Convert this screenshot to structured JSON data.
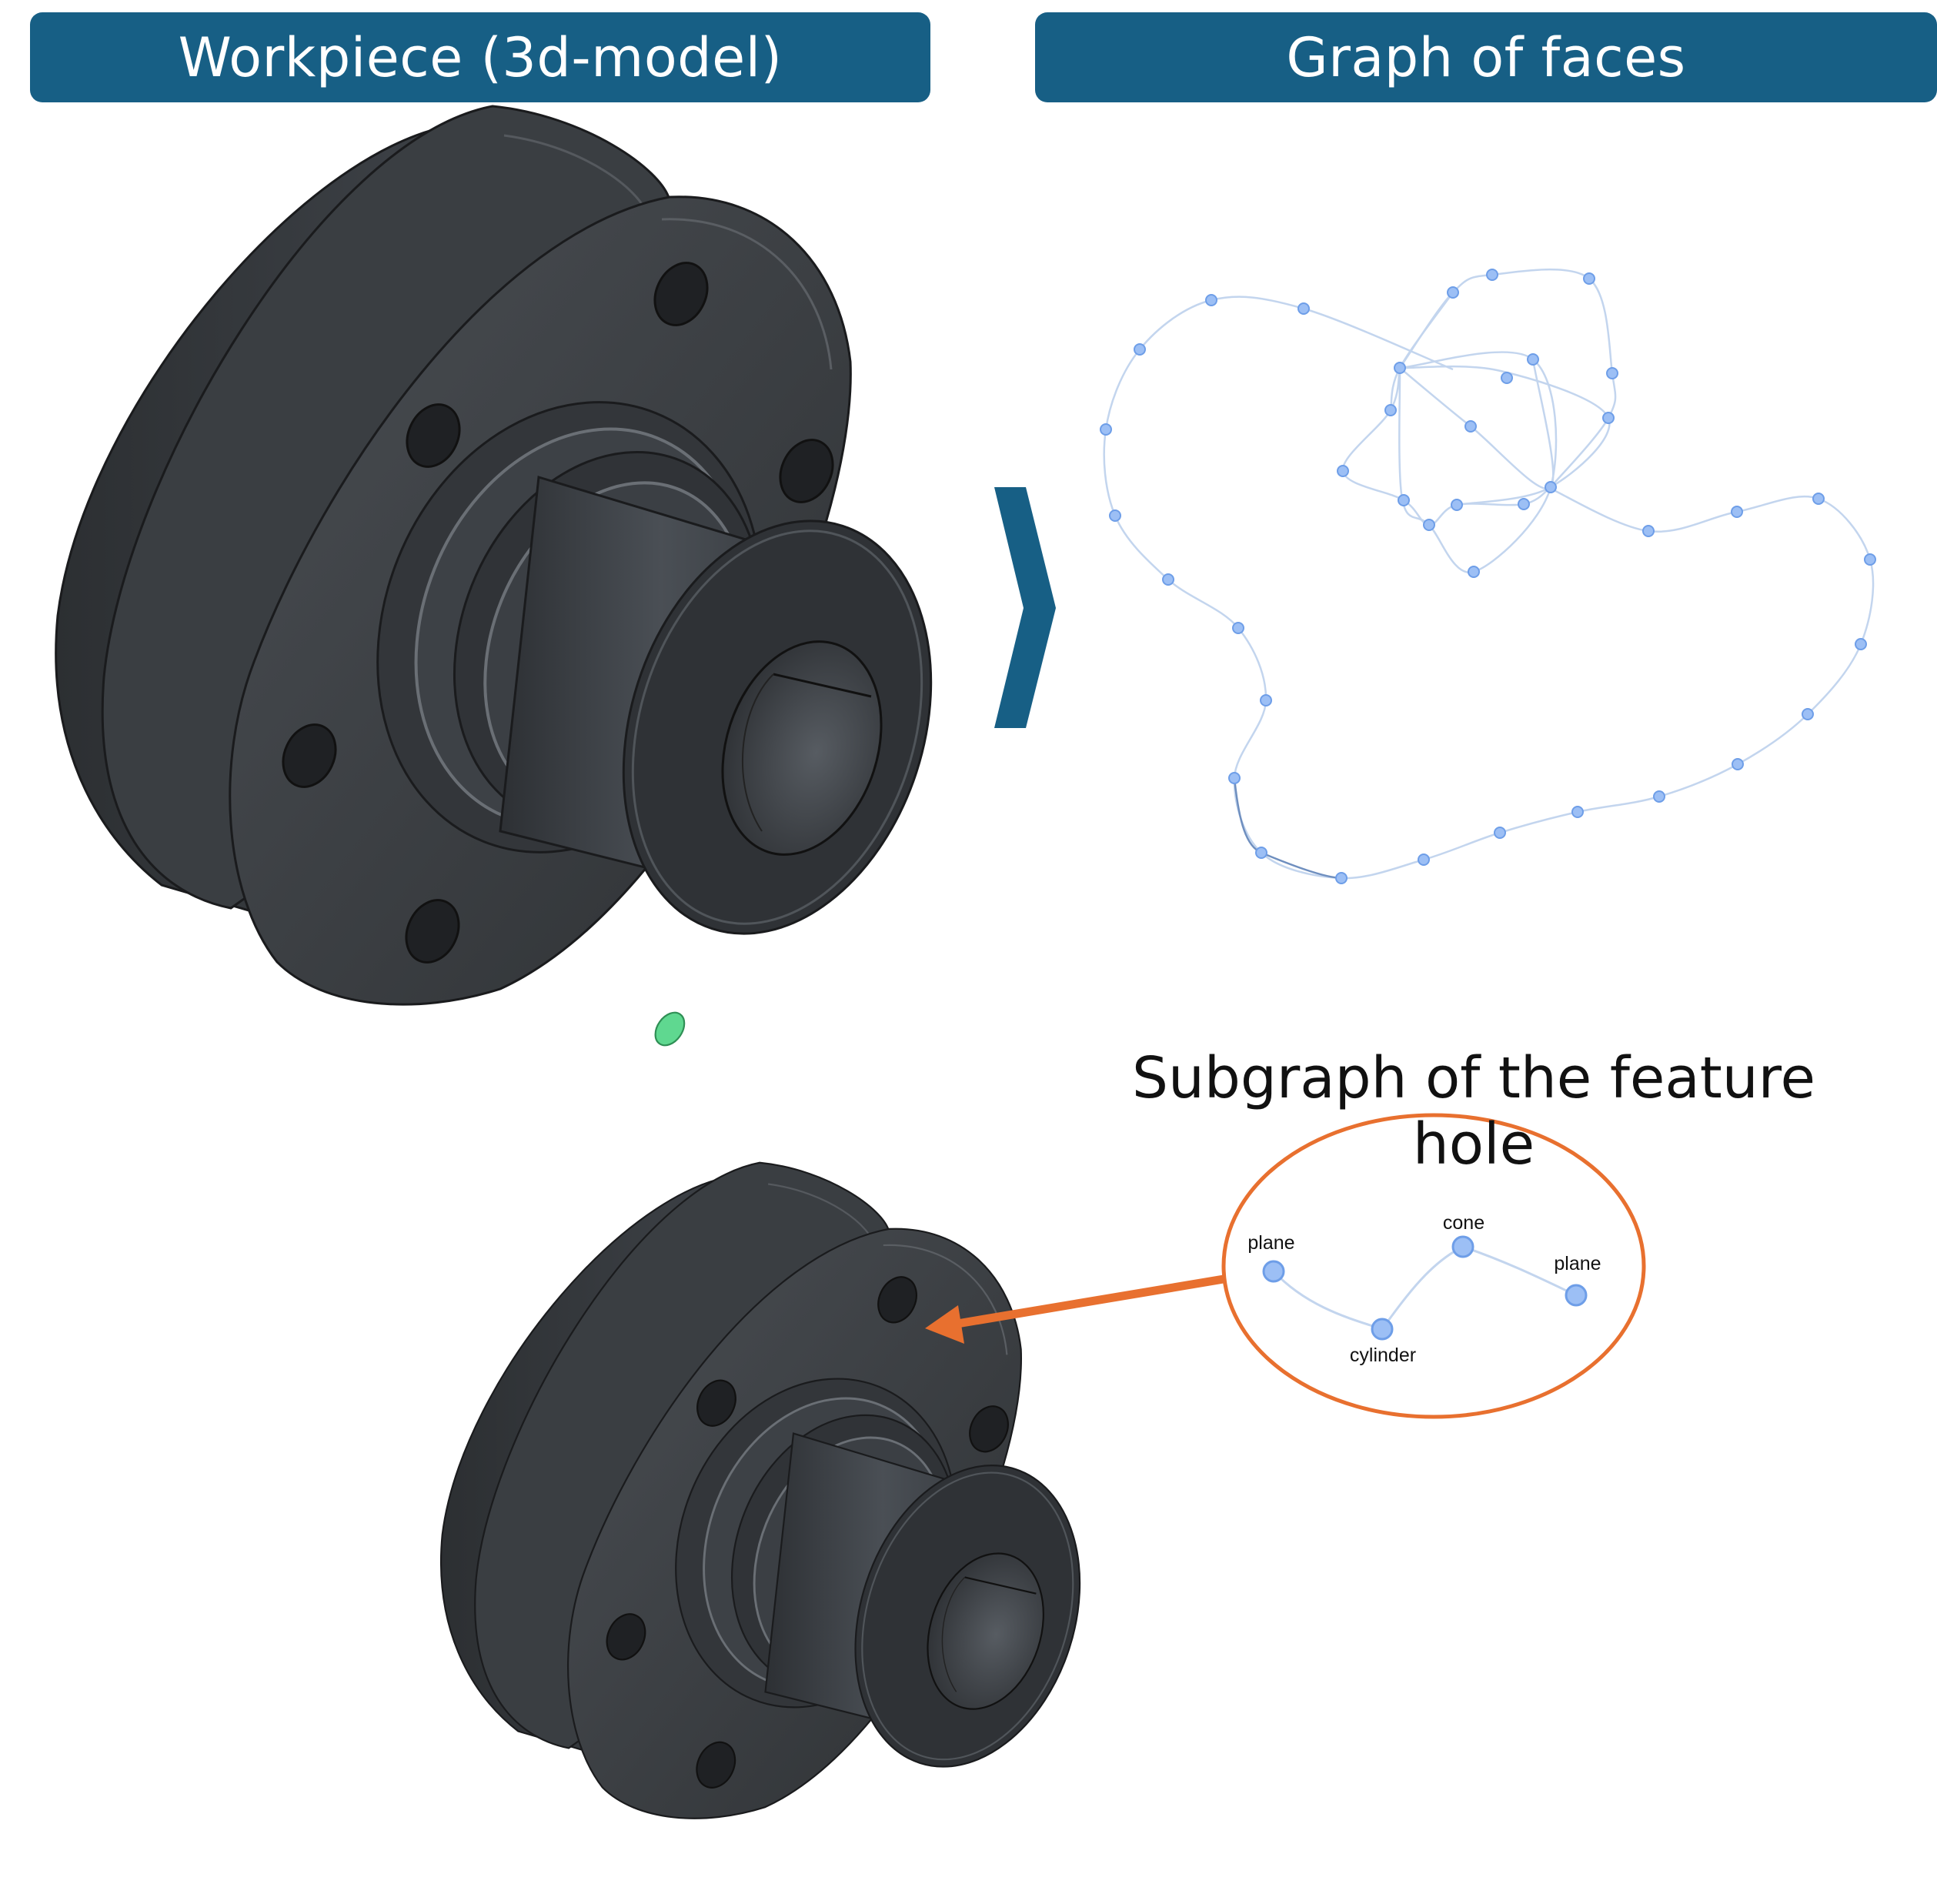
{
  "headers": {
    "left": "Workpiece (3d-model)",
    "right": "Graph of faces"
  },
  "subgraph": {
    "title": "Subgraph of the feature hole",
    "nodes": [
      {
        "id": "n1",
        "label": "plane"
      },
      {
        "id": "n2",
        "label": "cylinder"
      },
      {
        "id": "n3",
        "label": "cone"
      },
      {
        "id": "n4",
        "label": "plane"
      }
    ]
  },
  "colors": {
    "header_bg": "#175f85",
    "chevron": "#175f85",
    "node_fill": "#9cbff5",
    "node_stroke": "#6e9ee8",
    "edge": "#c3d5ee",
    "ellipse_stroke": "#e8702f",
    "arrow": "#e8702f",
    "highlight_face": "#5fd890",
    "model_dark": "#2f3236",
    "model_mid": "#3f4348",
    "model_edge": "#1a1b1d"
  },
  "icons": {
    "separator": "chevron-right-icon"
  }
}
